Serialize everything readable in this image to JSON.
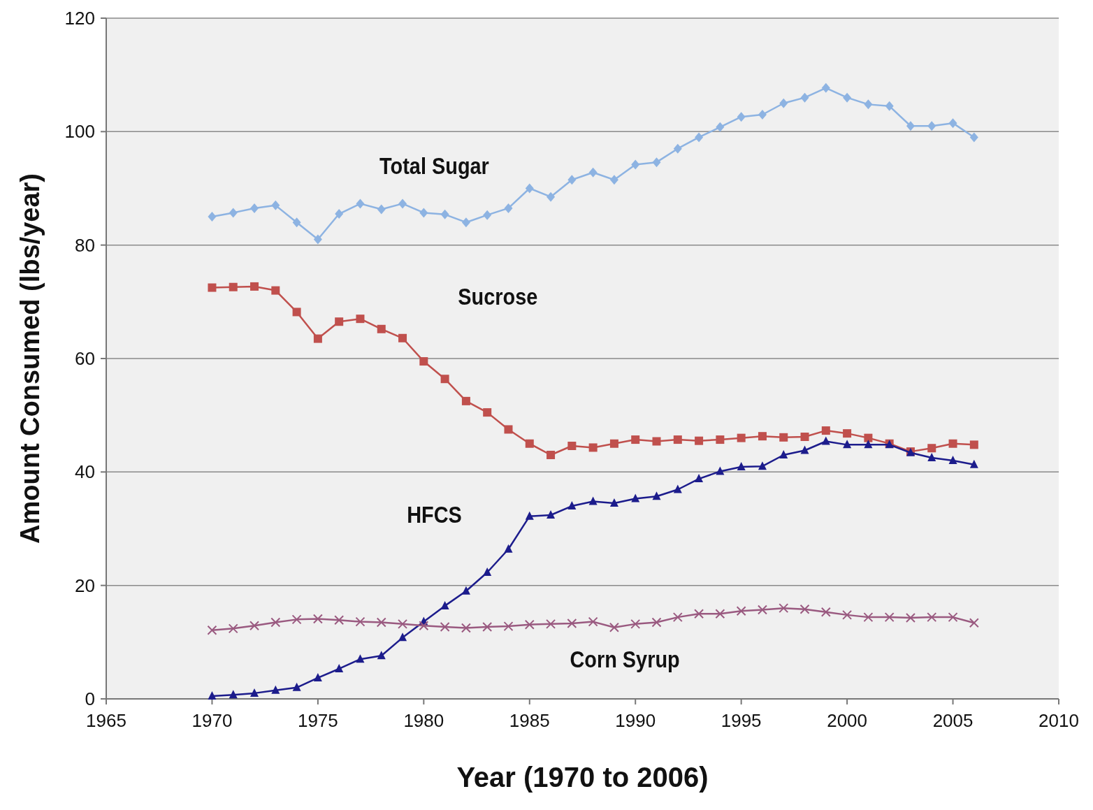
{
  "chart_data": {
    "type": "line",
    "xlabel": "Year (1970 to 2006)",
    "ylabel": "Amount Consumed (lbs/year)",
    "x": [
      1970,
      1971,
      1972,
      1973,
      1974,
      1975,
      1976,
      1977,
      1978,
      1979,
      1980,
      1981,
      1982,
      1983,
      1984,
      1985,
      1986,
      1987,
      1988,
      1989,
      1990,
      1991,
      1992,
      1993,
      1994,
      1995,
      1996,
      1997,
      1998,
      1999,
      2000,
      2001,
      2002,
      2003,
      2004,
      2005,
      2006
    ],
    "series": [
      {
        "name": "Total Sugar",
        "color": "#8db3e2",
        "marker": "diamond",
        "values": [
          85,
          85.7,
          86.5,
          87,
          84,
          81,
          85.5,
          87.3,
          86.3,
          87.3,
          85.7,
          85.4,
          84,
          85.3,
          86.5,
          90,
          88.5,
          91.5,
          92.8,
          91.5,
          94.2,
          94.6,
          97,
          99,
          100.8,
          102.6,
          103,
          105,
          106,
          107.7,
          106,
          104.8,
          104.5,
          101,
          101,
          101.5,
          99
        ]
      },
      {
        "name": "Sucrose",
        "color": "#c0504d",
        "marker": "square",
        "values": [
          72.5,
          72.6,
          72.7,
          72,
          68.2,
          63.5,
          66.5,
          67,
          65.2,
          63.6,
          59.5,
          56.4,
          52.5,
          50.5,
          47.5,
          45,
          43,
          44.6,
          44.3,
          45,
          45.7,
          45.4,
          45.7,
          45.5,
          45.7,
          46,
          46.3,
          46.1,
          46.2,
          47.3,
          46.8,
          46,
          45,
          43.6,
          44.2,
          45,
          44.8
        ]
      },
      {
        "name": "HFCS",
        "color": "#1c1c8c",
        "marker": "triangle",
        "values": [
          0.5,
          0.7,
          1,
          1.5,
          2,
          3.7,
          5.3,
          7,
          7.6,
          10.8,
          13.6,
          16.4,
          19,
          22.3,
          26.4,
          32.2,
          32.4,
          34,
          34.8,
          34.5,
          35.3,
          35.7,
          36.9,
          38.8,
          40.1,
          40.9,
          41,
          43,
          43.8,
          45.4,
          44.8,
          44.8,
          44.8,
          43.4,
          42.5,
          42,
          41.3
        ]
      },
      {
        "name": "Corn Syrup",
        "color": "#9a5a80",
        "marker": "cross",
        "values": [
          12.1,
          12.4,
          12.9,
          13.5,
          14,
          14.1,
          13.9,
          13.6,
          13.5,
          13.2,
          12.9,
          12.7,
          12.5,
          12.7,
          12.8,
          13.1,
          13.2,
          13.3,
          13.6,
          12.6,
          13.2,
          13.5,
          14.4,
          15,
          15,
          15.5,
          15.7,
          16,
          15.8,
          15.3,
          14.8,
          14.4,
          14.4,
          14.3,
          14.4,
          14.4,
          13.4
        ]
      }
    ],
    "xlim": [
      1965,
      2010
    ],
    "xticks": [
      1965,
      1970,
      1975,
      1980,
      1985,
      1990,
      1995,
      2000,
      2005,
      2010
    ],
    "ylim": [
      0,
      120
    ],
    "yticks": [
      0,
      20,
      40,
      60,
      80,
      100,
      120
    ],
    "grid": "y"
  }
}
